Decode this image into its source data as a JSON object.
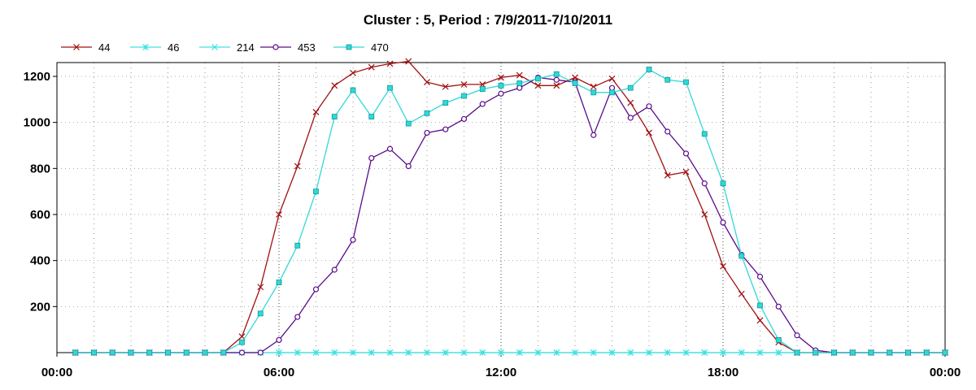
{
  "chart_data": {
    "type": "line",
    "title": "Cluster : 5, Period : 7/9/2011-7/10/2011",
    "xlabel": "",
    "ylabel": "",
    "x_tick_labels": [
      "00:00",
      "06:00",
      "12:00",
      "18:00",
      "00:00"
    ],
    "xlim_hours": [
      0,
      24
    ],
    "ylim": [
      0,
      1260
    ],
    "y_ticks": [
      200,
      400,
      600,
      800,
      1000,
      1200
    ],
    "grid": true,
    "legend": "top-left",
    "x_hours": [
      0.5,
      1.0,
      1.5,
      2.0,
      2.5,
      3.0,
      3.5,
      4.0,
      4.5,
      5.0,
      5.5,
      6.0,
      6.5,
      7.0,
      7.5,
      8.0,
      8.5,
      9.0,
      9.5,
      10.0,
      10.5,
      11.0,
      11.5,
      12.0,
      12.5,
      13.0,
      13.5,
      14.0,
      14.5,
      15.0,
      15.5,
      16.0,
      16.5,
      17.0,
      17.5,
      18.0,
      18.5,
      19.0,
      19.5,
      20.0,
      20.5,
      21.0,
      21.5,
      22.0,
      22.5,
      23.0,
      23.5,
      24.0
    ],
    "series": [
      {
        "name": "44",
        "color": "#a01010",
        "marker": "x",
        "values": [
          0,
          0,
          0,
          0,
          0,
          0,
          0,
          0,
          0,
          70,
          285,
          600,
          810,
          1045,
          1160,
          1215,
          1240,
          1255,
          1265,
          1175,
          1155,
          1165,
          1165,
          1195,
          1205,
          1160,
          1160,
          1195,
          1155,
          1190,
          1085,
          955,
          770,
          785,
          600,
          375,
          255,
          140,
          45,
          0,
          0,
          0,
          0,
          0,
          0,
          0,
          0,
          0
        ]
      },
      {
        "name": "46",
        "color": "#40e0e0",
        "marker": "asterisk",
        "values": [
          0,
          0,
          0,
          0,
          0,
          0,
          0,
          0,
          0,
          0,
          0,
          0,
          0,
          0,
          0,
          0,
          0,
          0,
          0,
          0,
          0,
          0,
          0,
          0,
          0,
          0,
          0,
          0,
          0,
          0,
          0,
          0,
          0,
          0,
          0,
          0,
          0,
          0,
          0,
          0,
          0,
          0,
          0,
          0,
          0,
          0,
          0,
          0
        ]
      },
      {
        "name": "214",
        "color": "#40e0e0",
        "marker": "x",
        "values": [
          0,
          0,
          0,
          0,
          0,
          0,
          0,
          0,
          0,
          0,
          0,
          0,
          0,
          0,
          0,
          0,
          0,
          0,
          0,
          0,
          0,
          0,
          0,
          0,
          0,
          0,
          0,
          0,
          0,
          0,
          0,
          0,
          0,
          0,
          0,
          0,
          0,
          0,
          0,
          0,
          0,
          0,
          0,
          0,
          0,
          0,
          0,
          0
        ]
      },
      {
        "name": "453",
        "color": "#5a0a8a",
        "marker": "circle",
        "values": [
          0,
          0,
          0,
          0,
          0,
          0,
          0,
          0,
          0,
          0,
          0,
          55,
          155,
          275,
          360,
          490,
          845,
          885,
          810,
          955,
          970,
          1015,
          1080,
          1125,
          1150,
          1195,
          1185,
          1175,
          945,
          1150,
          1020,
          1070,
          960,
          865,
          735,
          565,
          425,
          330,
          200,
          75,
          10,
          0,
          0,
          0,
          0,
          0,
          0,
          0
        ]
      },
      {
        "name": "470",
        "color": "#30d8d8",
        "marker": "square",
        "values": [
          0,
          0,
          0,
          0,
          0,
          0,
          0,
          0,
          0,
          45,
          170,
          305,
          465,
          700,
          1025,
          1140,
          1025,
          1150,
          995,
          1040,
          1085,
          1115,
          1145,
          1160,
          1170,
          1190,
          1210,
          1170,
          1130,
          1130,
          1150,
          1230,
          1185,
          1175,
          950,
          735,
          420,
          205,
          55,
          0,
          0,
          0,
          0,
          0,
          0,
          0,
          0,
          0
        ]
      }
    ]
  }
}
